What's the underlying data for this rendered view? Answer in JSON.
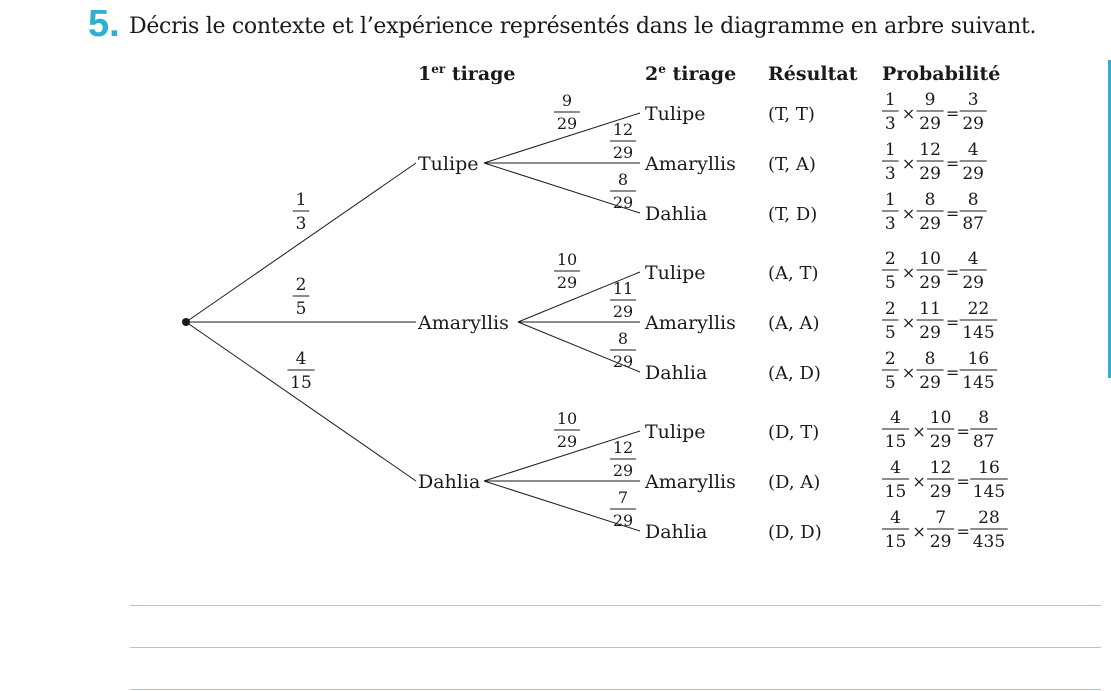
{
  "exercise": {
    "number": "5.",
    "prompt": "Décris le contexte et l’expérience représentés dans le diagramme en arbre suivant."
  },
  "colors": {
    "accent": "#2fb0d0",
    "rule": "#8fd2e4",
    "ink": "#1a1a1a"
  },
  "headers": {
    "draw1": "1",
    "draw1_sup": "er",
    "draw1_rest": " tirage",
    "draw2": "2",
    "draw2_sup": "e",
    "draw2_rest": " tirage",
    "result": "Résultat",
    "probability": "Probabilité"
  },
  "tree": {
    "branches": [
      {
        "name": "Tulipe",
        "prob": [
          "1",
          "3"
        ],
        "children": [
          {
            "name": "Tulipe",
            "prob": [
              "9",
              "29"
            ],
            "result": "(T, T)",
            "calc": [
              [
                "1",
                "3"
              ],
              [
                "9",
                "29"
              ],
              [
                "3",
                "29"
              ]
            ]
          },
          {
            "name": "Amaryllis",
            "prob": [
              "12",
              "29"
            ],
            "result": "(T, A)",
            "calc": [
              [
                "1",
                "3"
              ],
              [
                "12",
                "29"
              ],
              [
                "4",
                "29"
              ]
            ]
          },
          {
            "name": "Dahlia",
            "prob": [
              "8",
              "29"
            ],
            "result": "(T, D)",
            "calc": [
              [
                "1",
                "3"
              ],
              [
                "8",
                "29"
              ],
              [
                "8",
                "87"
              ]
            ]
          }
        ]
      },
      {
        "name": "Amaryllis",
        "prob": [
          "2",
          "5"
        ],
        "children": [
          {
            "name": "Tulipe",
            "prob": [
              "10",
              "29"
            ],
            "result": "(A, T)",
            "calc": [
              [
                "2",
                "5"
              ],
              [
                "10",
                "29"
              ],
              [
                "4",
                "29"
              ]
            ]
          },
          {
            "name": "Amaryllis",
            "prob": [
              "11",
              "29"
            ],
            "result": "(A, A)",
            "calc": [
              [
                "2",
                "5"
              ],
              [
                "11",
                "29"
              ],
              [
                "22",
                "145"
              ]
            ]
          },
          {
            "name": "Dahlia",
            "prob": [
              "8",
              "29"
            ],
            "result": "(A, D)",
            "calc": [
              [
                "2",
                "5"
              ],
              [
                "8",
                "29"
              ],
              [
                "16",
                "145"
              ]
            ]
          }
        ]
      },
      {
        "name": "Dahlia",
        "prob": [
          "4",
          "15"
        ],
        "children": [
          {
            "name": "Tulipe",
            "prob": [
              "10",
              "29"
            ],
            "result": "(D, T)",
            "calc": [
              [
                "4",
                "15"
              ],
              [
                "10",
                "29"
              ],
              [
                "8",
                "87"
              ]
            ]
          },
          {
            "name": "Amaryllis",
            "prob": [
              "12",
              "29"
            ],
            "result": "(D, A)",
            "calc": [
              [
                "4",
                "15"
              ],
              [
                "12",
                "29"
              ],
              [
                "16",
                "145"
              ]
            ]
          },
          {
            "name": "Dahlia",
            "prob": [
              "7",
              "29"
            ],
            "result": "(D, D)",
            "calc": [
              [
                "4",
                "15"
              ],
              [
                "7",
                "29"
              ],
              [
                "28",
                "435"
              ]
            ]
          }
        ]
      }
    ],
    "times_symbol": "×",
    "equals_symbol": "="
  }
}
